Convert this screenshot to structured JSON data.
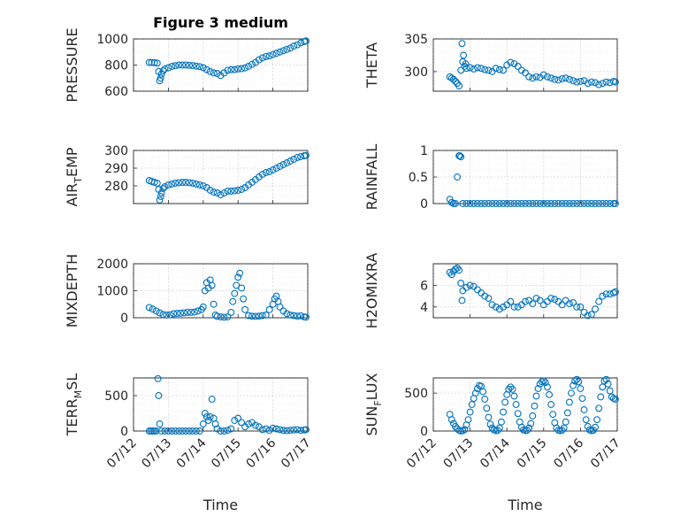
{
  "figure": {
    "title": "Figure 3 medium"
  },
  "colors": {
    "marker": "#0072BD",
    "grid": "#d9d9d9",
    "axis": "#262626"
  },
  "chart_data": [
    {
      "id": "pressure",
      "type": "scatter",
      "title": "Figure 3 medium",
      "ylabel": "PRESSURE",
      "xlabel": "",
      "xlim": [
        0,
        5
      ],
      "ylim": [
        600,
        1000
      ],
      "yticks": [
        600,
        800,
        1000
      ],
      "xticks": [],
      "grid": true,
      "series": [
        {
          "x": [
            0.45,
            0.52,
            0.6,
            0.68,
            0.72,
            0.75,
            0.78,
            0.8,
            0.85,
            0.9,
            1.0,
            1.1,
            1.2,
            1.3,
            1.4,
            1.5,
            1.6,
            1.7,
            1.8,
            1.9,
            2.0,
            2.1,
            2.2,
            2.3,
            2.4,
            2.5,
            2.6,
            2.7,
            2.8,
            2.9,
            3.0,
            3.1,
            3.2,
            3.3,
            3.4,
            3.5,
            3.6,
            3.7,
            3.8,
            3.9,
            4.0,
            4.1,
            4.2,
            4.3,
            4.4,
            4.5,
            4.6,
            4.7,
            4.8,
            4.9,
            4.95
          ],
          "y": [
            820,
            820,
            818,
            815,
            750,
            680,
            700,
            730,
            755,
            770,
            780,
            790,
            795,
            800,
            800,
            800,
            798,
            796,
            792,
            788,
            780,
            765,
            750,
            740,
            735,
            720,
            740,
            760,
            765,
            765,
            770,
            772,
            778,
            790,
            805,
            820,
            840,
            855,
            865,
            870,
            880,
            890,
            900,
            910,
            920,
            930,
            945,
            955,
            970,
            980,
            985
          ]
        }
      ]
    },
    {
      "id": "theta",
      "type": "scatter",
      "ylabel": "THETA",
      "xlabel": "",
      "xlim": [
        0,
        5
      ],
      "ylim": [
        297,
        305
      ],
      "yticks": [
        300,
        305
      ],
      "xticks": [],
      "grid": true,
      "series": [
        {
          "x": [
            0.45,
            0.5,
            0.55,
            0.6,
            0.65,
            0.7,
            0.75,
            0.8,
            0.85,
            0.9,
            1.0,
            1.1,
            1.2,
            1.3,
            1.4,
            1.5,
            1.6,
            1.7,
            1.8,
            1.9,
            2.0,
            2.1,
            2.2,
            2.3,
            2.4,
            2.5,
            2.6,
            2.7,
            2.8,
            2.9,
            3.0,
            3.1,
            3.2,
            3.3,
            3.4,
            3.5,
            3.6,
            3.7,
            3.8,
            3.9,
            4.0,
            4.1,
            4.2,
            4.3,
            4.4,
            4.5,
            4.6,
            4.7,
            4.8,
            4.9,
            4.95,
            0.78,
            0.82,
            0.88
          ],
          "y": [
            299.2,
            299,
            298.8,
            298.5,
            298.2,
            297.8,
            300.2,
            301.5,
            300.8,
            300.5,
            300.6,
            300.4,
            300.6,
            300.5,
            300.3,
            300.2,
            300,
            300.5,
            300.3,
            300.2,
            301,
            301.4,
            301.2,
            300.8,
            300.2,
            299.8,
            299.2,
            299,
            299.2,
            299.1,
            299.5,
            299.2,
            299,
            298.8,
            298.7,
            298.9,
            299,
            298.8,
            298.6,
            298.4,
            298.5,
            298.6,
            298.2,
            298.4,
            298.3,
            298,
            298.2,
            298.4,
            298.3,
            298.5,
            298.4,
            304.3,
            302.5,
            301.2
          ]
        }
      ]
    },
    {
      "id": "air-temp",
      "type": "scatter",
      "ylabel": "AIR_TEMP",
      "xlabel": "",
      "xlim": [
        0,
        5
      ],
      "ylim": [
        270,
        300
      ],
      "yticks": [
        280,
        290,
        300
      ],
      "xticks": [],
      "grid": true,
      "series": [
        {
          "x": [
            0.45,
            0.52,
            0.6,
            0.68,
            0.72,
            0.75,
            0.78,
            0.8,
            0.85,
            0.9,
            1.0,
            1.1,
            1.2,
            1.3,
            1.4,
            1.5,
            1.6,
            1.7,
            1.8,
            1.9,
            2.0,
            2.1,
            2.2,
            2.3,
            2.4,
            2.5,
            2.6,
            2.7,
            2.8,
            2.9,
            3.0,
            3.1,
            3.2,
            3.3,
            3.4,
            3.5,
            3.6,
            3.7,
            3.8,
            3.9,
            4.0,
            4.1,
            4.2,
            4.3,
            4.4,
            4.5,
            4.6,
            4.7,
            4.8,
            4.9,
            4.95
          ],
          "y": [
            283,
            282.5,
            282,
            281.5,
            278,
            272,
            274,
            276,
            278.5,
            279.5,
            280.5,
            281,
            281.5,
            281.8,
            282,
            282,
            281.8,
            281.5,
            281,
            280.5,
            280,
            279,
            277.5,
            276.5,
            276,
            275,
            276,
            277,
            277,
            277.2,
            277.5,
            278,
            279,
            280.5,
            282,
            283.5,
            285,
            286.5,
            287.5,
            288,
            289,
            290,
            291,
            292,
            293,
            294,
            295,
            296,
            296.5,
            297,
            297.2
          ]
        }
      ]
    },
    {
      "id": "rainfall",
      "type": "scatter",
      "ylabel": "RAINFALL",
      "xlabel": "",
      "xlim": [
        0,
        5
      ],
      "ylim": [
        0,
        1
      ],
      "yticks": [
        0,
        0.5,
        1
      ],
      "xticks": [],
      "grid": true,
      "series": [
        {
          "x": [
            0.45,
            0.5,
            0.55,
            0.6,
            0.65,
            0.7,
            0.72,
            0.75,
            0.8,
            0.9,
            1.0,
            1.1,
            1.2,
            1.3,
            1.4,
            1.5,
            1.6,
            1.7,
            1.8,
            1.9,
            2.0,
            2.1,
            2.2,
            2.3,
            2.4,
            2.5,
            2.6,
            2.7,
            2.8,
            2.9,
            3.0,
            3.1,
            3.2,
            3.3,
            3.4,
            3.5,
            3.6,
            3.7,
            3.8,
            3.9,
            4.0,
            4.1,
            4.2,
            4.3,
            4.4,
            4.5,
            4.6,
            4.7,
            4.8,
            4.9,
            4.95
          ],
          "y": [
            0.08,
            0.02,
            0,
            0,
            0.5,
            0.9,
            0.9,
            0.88,
            0,
            0,
            0,
            0,
            0,
            0,
            0,
            0,
            0,
            0,
            0,
            0,
            0,
            0,
            0,
            0,
            0,
            0,
            0,
            0,
            0,
            0,
            0,
            0,
            0,
            0,
            0,
            0,
            0,
            0,
            0,
            0,
            0,
            0,
            0,
            0,
            0,
            0,
            0,
            0,
            0,
            0,
            0
          ]
        }
      ]
    },
    {
      "id": "mixdepth",
      "type": "scatter",
      "ylabel": "MIXDEPTH",
      "xlabel": "",
      "xlim": [
        0,
        5
      ],
      "ylim": [
        0,
        2000
      ],
      "yticks": [
        0,
        1000,
        2000
      ],
      "xticks": [],
      "grid": true,
      "series": [
        {
          "x": [
            0.45,
            0.55,
            0.65,
            0.75,
            0.85,
            0.95,
            1.05,
            1.15,
            1.25,
            1.35,
            1.45,
            1.55,
            1.65,
            1.75,
            1.85,
            1.95,
            2.0,
            2.05,
            2.1,
            2.15,
            2.2,
            2.25,
            2.3,
            2.35,
            2.4,
            2.5,
            2.6,
            2.7,
            2.8,
            2.85,
            2.9,
            2.95,
            3.0,
            3.05,
            3.1,
            3.15,
            3.2,
            3.3,
            3.4,
            3.5,
            3.6,
            3.7,
            3.8,
            3.9,
            4.0,
            4.05,
            4.1,
            4.15,
            4.2,
            4.3,
            4.4,
            4.5,
            4.6,
            4.7,
            4.8,
            4.9,
            4.95
          ],
          "y": [
            380,
            320,
            250,
            180,
            120,
            100,
            110,
            150,
            160,
            170,
            180,
            200,
            200,
            210,
            250,
            300,
            400,
            1000,
            1300,
            1100,
            1400,
            1200,
            500,
            100,
            50,
            30,
            20,
            30,
            200,
            600,
            900,
            1200,
            1500,
            1650,
            1100,
            700,
            300,
            80,
            60,
            50,
            60,
            80,
            100,
            300,
            500,
            700,
            800,
            600,
            400,
            250,
            150,
            100,
            80,
            60,
            70,
            30,
            20
          ]
        }
      ]
    },
    {
      "id": "h2omixra",
      "type": "scatter",
      "ylabel": "H2OMIXRA",
      "xlabel": "",
      "xlim": [
        0,
        5
      ],
      "ylim": [
        3,
        8
      ],
      "yticks": [
        4,
        6
      ],
      "xticks": [],
      "grid": true,
      "series": [
        {
          "x": [
            0.45,
            0.5,
            0.55,
            0.6,
            0.65,
            0.7,
            0.75,
            0.8,
            0.9,
            1.0,
            1.1,
            1.2,
            1.3,
            1.4,
            1.5,
            1.6,
            1.7,
            1.8,
            1.9,
            2.0,
            2.1,
            2.2,
            2.3,
            2.4,
            2.5,
            2.6,
            2.7,
            2.8,
            2.9,
            3.0,
            3.1,
            3.2,
            3.3,
            3.4,
            3.5,
            3.6,
            3.7,
            3.8,
            3.9,
            4.0,
            4.1,
            4.2,
            4.3,
            4.4,
            4.5,
            4.6,
            4.7,
            4.8,
            4.9,
            4.95,
            0.78
          ],
          "y": [
            7.2,
            7,
            7.3,
            7.5,
            7.6,
            7.4,
            6.2,
            5.5,
            5.8,
            6,
            5.9,
            5.6,
            5.3,
            5,
            4.8,
            4.2,
            4,
            3.8,
            4,
            4.2,
            4.5,
            4,
            4,
            4.2,
            4.5,
            4.6,
            4.3,
            4.8,
            4.6,
            4.2,
            4.5,
            4.8,
            4.7,
            4.5,
            4.2,
            4.6,
            4.3,
            4.4,
            4,
            4,
            3.5,
            3.2,
            3.3,
            3.8,
            4.5,
            5,
            5.2,
            5.2,
            5.3,
            5.4,
            4.6
          ]
        }
      ]
    },
    {
      "id": "terr-msl",
      "type": "scatter",
      "ylabel": "TERR_MSL",
      "xlabel": "Time",
      "xlim": [
        0,
        5
      ],
      "ylim": [
        0,
        750
      ],
      "yticks": [
        0,
        500
      ],
      "xticks": [
        "07/12",
        "07/13",
        "07/14",
        "07/15",
        "07/16",
        "07/17"
      ],
      "grid": true,
      "series": [
        {
          "x": [
            0.45,
            0.5,
            0.55,
            0.6,
            0.65,
            0.7,
            0.72,
            0.75,
            0.8,
            0.9,
            1.0,
            1.1,
            1.2,
            1.3,
            1.4,
            1.5,
            1.6,
            1.7,
            1.8,
            1.9,
            2.0,
            2.05,
            2.1,
            2.15,
            2.2,
            2.25,
            2.3,
            2.35,
            2.4,
            2.5,
            2.6,
            2.7,
            2.8,
            2.9,
            3.0,
            3.1,
            3.2,
            3.3,
            3.4,
            3.5,
            3.6,
            3.7,
            3.8,
            3.9,
            4.0,
            4.1,
            4.2,
            4.3,
            4.4,
            4.5,
            4.6,
            4.7,
            4.8,
            4.9,
            4.95
          ],
          "y": [
            0,
            0,
            0,
            0,
            0,
            740,
            500,
            100,
            0,
            0,
            0,
            0,
            0,
            0,
            0,
            0,
            0,
            0,
            0,
            0,
            100,
            250,
            200,
            150,
            200,
            450,
            180,
            100,
            30,
            0,
            0,
            10,
            30,
            150,
            180,
            120,
            60,
            100,
            120,
            80,
            60,
            20,
            30,
            10,
            40,
            30,
            20,
            10,
            5,
            10,
            15,
            20,
            10,
            15,
            20
          ]
        }
      ]
    },
    {
      "id": "sun-flux",
      "type": "scatter",
      "ylabel": "SUN_FLUX",
      "xlabel": "Time",
      "xlim": [
        0,
        5
      ],
      "ylim": [
        0,
        700
      ],
      "yticks": [
        0,
        500
      ],
      "xticks": [
        "07/12",
        "07/13",
        "07/14",
        "07/15",
        "07/16",
        "07/17"
      ],
      "grid": true,
      "series": [
        {
          "x": [
            0.45,
            0.5,
            0.55,
            0.6,
            0.65,
            0.7,
            0.75,
            0.8,
            0.85,
            0.9,
            0.95,
            1.0,
            1.05,
            1.1,
            1.15,
            1.2,
            1.25,
            1.3,
            1.35,
            1.4,
            1.45,
            1.5,
            1.55,
            1.6,
            1.65,
            1.7,
            1.75,
            1.8,
            1.85,
            1.9,
            1.95,
            2.0,
            2.05,
            2.1,
            2.15,
            2.2,
            2.25,
            2.3,
            2.35,
            2.4,
            2.45,
            2.5,
            2.55,
            2.6,
            2.65,
            2.7,
            2.75,
            2.8,
            2.85,
            2.9,
            2.95,
            3.0,
            3.05,
            3.1,
            3.15,
            3.2,
            3.25,
            3.3,
            3.35,
            3.4,
            3.45,
            3.5,
            3.55,
            3.6,
            3.65,
            3.7,
            3.75,
            3.8,
            3.85,
            3.9,
            3.95,
            4.0,
            4.05,
            4.1,
            4.15,
            4.2,
            4.25,
            4.3,
            4.35,
            4.4,
            4.45,
            4.5,
            4.55,
            4.6,
            4.65,
            4.7,
            4.75,
            4.8,
            4.85,
            4.9,
            4.95
          ],
          "y": [
            220,
            150,
            100,
            60,
            30,
            10,
            0,
            5,
            20,
            80,
            150,
            250,
            350,
            430,
            500,
            560,
            600,
            590,
            520,
            420,
            300,
            180,
            90,
            40,
            15,
            5,
            10,
            40,
            120,
            250,
            380,
            480,
            550,
            580,
            550,
            460,
            350,
            230,
            120,
            50,
            15,
            5,
            10,
            40,
            100,
            200,
            330,
            460,
            560,
            620,
            650,
            660,
            640,
            580,
            480,
            350,
            220,
            110,
            40,
            10,
            5,
            10,
            40,
            120,
            240,
            380,
            500,
            600,
            660,
            680,
            650,
            560,
            430,
            280,
            150,
            60,
            15,
            5,
            10,
            50,
            150,
            300,
            450,
            580,
            660,
            680,
            620,
            530,
            450,
            430,
            420
          ]
        }
      ]
    }
  ]
}
